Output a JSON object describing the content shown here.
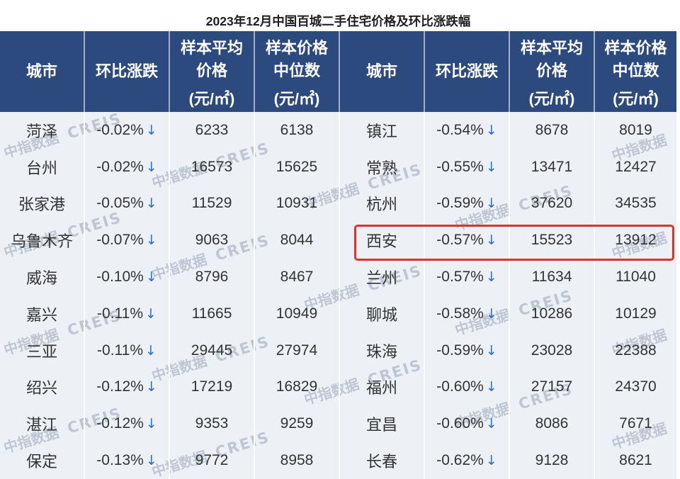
{
  "colors": {
    "header_bg": "#2d4a7f",
    "header_text": "#ffffff",
    "body_bg": "#edf0f5",
    "separator": "#ffffff",
    "cell_text": "#333333",
    "title_text": "#1f1f1f",
    "arrow": "#2c6fd6",
    "highlight": "#d9342f",
    "watermark": "#9aa5b8"
  },
  "watermark": {
    "cn": "中指数据",
    "en": "CREIS"
  },
  "chart_data": {
    "type": "table",
    "title": "2023年12月中国百城二手住宅价格及环比涨跌幅",
    "columns": [
      {
        "label": "城市"
      },
      {
        "label": "环比涨跌"
      },
      {
        "label": "样本平均价格",
        "unit": "(元/㎡)"
      },
      {
        "label": "样本价格中位数",
        "unit": "(元/㎡)"
      }
    ],
    "trend_arrow": "↓",
    "blocks": [
      {
        "rows": [
          {
            "city": "菏泽",
            "change": "-0.02%",
            "avg_price": 6233,
            "median_price": 6138
          },
          {
            "city": "台州",
            "change": "-0.02%",
            "avg_price": 16573,
            "median_price": 15625
          },
          {
            "city": "张家港",
            "change": "-0.05%",
            "avg_price": 11529,
            "median_price": 10931
          },
          {
            "city": "乌鲁木齐",
            "change": "-0.07%",
            "avg_price": 9063,
            "median_price": 8044
          },
          {
            "city": "威海",
            "change": "-0.10%",
            "avg_price": 8796,
            "median_price": 8467
          },
          {
            "city": "嘉兴",
            "change": "-0.11%",
            "avg_price": 11665,
            "median_price": 10949
          },
          {
            "city": "三亚",
            "change": "-0.11%",
            "avg_price": 29445,
            "median_price": 27974
          },
          {
            "city": "绍兴",
            "change": "-0.12%",
            "avg_price": 17219,
            "median_price": 16829
          },
          {
            "city": "湛江",
            "change": "-0.12%",
            "avg_price": 9353,
            "median_price": 9259
          },
          {
            "city": "保定",
            "change": "-0.13%",
            "avg_price": 9772,
            "median_price": 8958
          }
        ]
      },
      {
        "rows": [
          {
            "city": "镇江",
            "change": "-0.54%",
            "avg_price": 8678,
            "median_price": 8019
          },
          {
            "city": "常熟",
            "change": "-0.55%",
            "avg_price": 13471,
            "median_price": 12427
          },
          {
            "city": "杭州",
            "change": "-0.59%",
            "avg_price": 37620,
            "median_price": 34535
          },
          {
            "city": "西安",
            "change": "-0.57%",
            "avg_price": 15523,
            "median_price": 13912,
            "highlighted": true
          },
          {
            "city": "兰州",
            "change": "-0.57%",
            "avg_price": 11634,
            "median_price": 11040
          },
          {
            "city": "聊城",
            "change": "-0.58%",
            "avg_price": 10286,
            "median_price": 10129
          },
          {
            "city": "珠海",
            "change": "-0.59%",
            "avg_price": 23028,
            "median_price": 22388
          },
          {
            "city": "福州",
            "change": "-0.60%",
            "avg_price": 27157,
            "median_price": 24370
          },
          {
            "city": "宜昌",
            "change": "-0.60%",
            "avg_price": 8086,
            "median_price": 7671
          },
          {
            "city": "长春",
            "change": "-0.62%",
            "avg_price": 9128,
            "median_price": 8621
          }
        ]
      }
    ]
  }
}
